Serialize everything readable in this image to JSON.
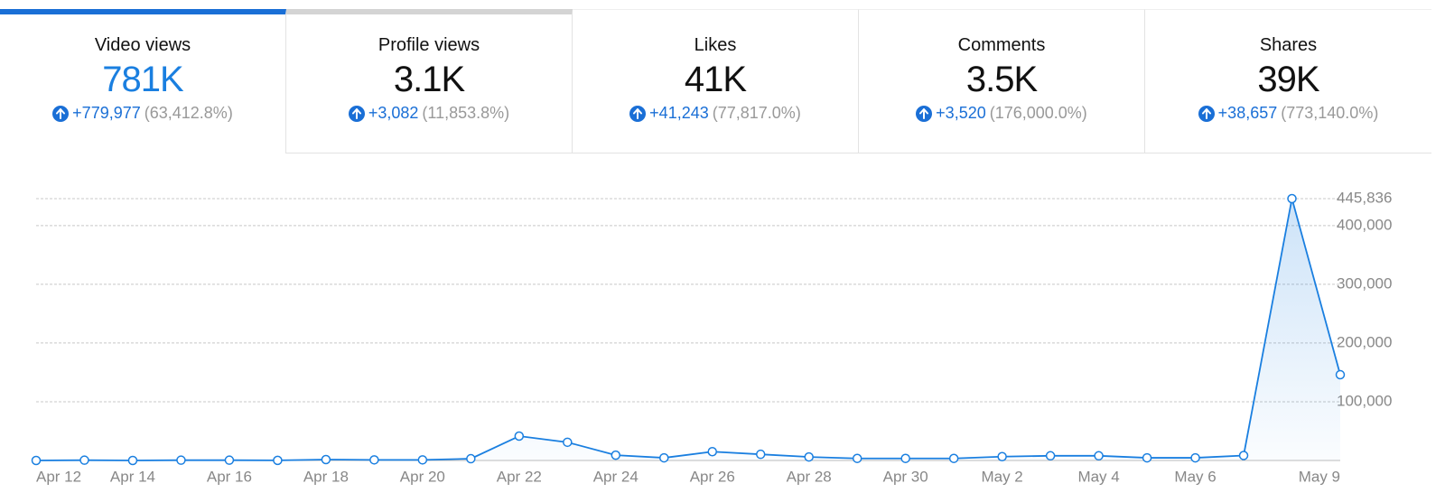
{
  "tabs": [
    {
      "title": "Video views",
      "value": "781K",
      "change": "+779,977",
      "percent": "(63,412.8%)"
    },
    {
      "title": "Profile views",
      "value": "3.1K",
      "change": "+3,082",
      "percent": "(11,853.8%)"
    },
    {
      "title": "Likes",
      "value": "41K",
      "change": "+41,243",
      "percent": "(77,817.0%)"
    },
    {
      "title": "Comments",
      "value": "3.5K",
      "change": "+3,520",
      "percent": "(176,000.0%)"
    },
    {
      "title": "Shares",
      "value": "39K",
      "change": "+38,657",
      "percent": "(773,140.0%)"
    }
  ],
  "chart_data": {
    "type": "line",
    "color": "#1a7fe0",
    "grid": true,
    "categories": [
      "Apr 12",
      null,
      "Apr 14",
      null,
      "Apr 16",
      null,
      "Apr 18",
      null,
      "Apr 20",
      null,
      "Apr 22",
      null,
      "Apr 24",
      null,
      "Apr 26",
      null,
      "Apr 28",
      null,
      "Apr 30",
      null,
      "May 2",
      null,
      "May 4",
      null,
      "May 6",
      null,
      null,
      "May 9"
    ],
    "values": [
      0,
      500,
      0,
      500,
      500,
      200,
      1500,
      1000,
      1000,
      3000,
      41500,
      31000,
      9000,
      4500,
      15000,
      10500,
      6000,
      3500,
      3500,
      3500,
      6500,
      8000,
      8000,
      4500,
      4500,
      8500,
      445836,
      146000
    ],
    "ylim": [
      0,
      445836
    ],
    "yticks": [
      {
        "value": 100000,
        "label": "100,000"
      },
      {
        "value": 200000,
        "label": "200,000"
      },
      {
        "value": 300000,
        "label": "300,000"
      },
      {
        "value": 400000,
        "label": "400,000"
      },
      {
        "value": 445836,
        "label": "445,836"
      }
    ]
  }
}
